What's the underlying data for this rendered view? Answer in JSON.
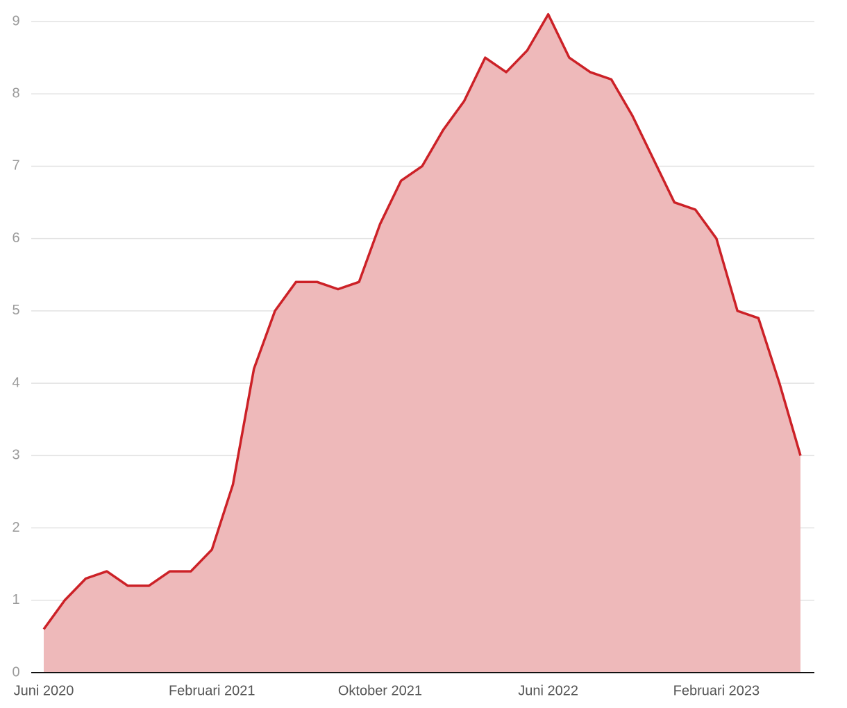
{
  "chart_data": {
    "type": "area",
    "categories": [
      "Juni 2020",
      null,
      null,
      null,
      null,
      null,
      null,
      null,
      "Februari 2021",
      null,
      null,
      null,
      null,
      null,
      null,
      null,
      "Oktober 2021",
      null,
      null,
      null,
      null,
      null,
      null,
      null,
      "Juni 2022",
      null,
      null,
      null,
      null,
      null,
      null,
      null,
      "Februari 2023",
      null,
      null,
      null,
      null
    ],
    "values": [
      0.6,
      1.0,
      1.3,
      1.4,
      1.2,
      1.2,
      1.4,
      1.4,
      1.7,
      2.6,
      4.2,
      5.0,
      5.4,
      5.4,
      5.3,
      5.4,
      6.2,
      6.8,
      7.0,
      7.5,
      7.9,
      8.5,
      8.3,
      8.6,
      9.1,
      8.5,
      8.3,
      8.2,
      7.7,
      7.1,
      6.5,
      6.4,
      6.0,
      5.0,
      4.9,
      4.0,
      3.0
    ],
    "color": "#cc2127",
    "fill": "#eeb9ba",
    "ylim": [
      0,
      9
    ],
    "yticks": [
      0,
      1,
      2,
      3,
      4,
      5,
      6,
      7,
      8,
      9
    ],
    "grid": true
  }
}
